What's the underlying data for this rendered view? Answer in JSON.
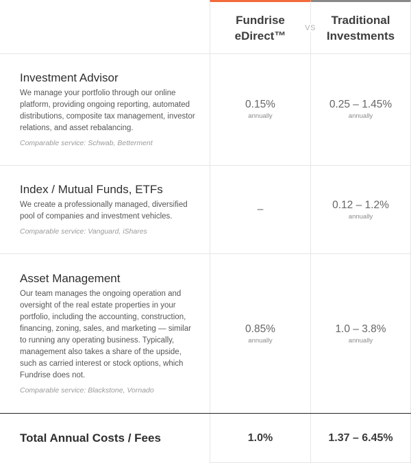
{
  "header": {
    "fundrise_label": "Fundrise\neDirect™",
    "vs_label": "VS",
    "traditional_label": "Traditional\nInvestments"
  },
  "rows": [
    {
      "title": "Investment Advisor",
      "description": "We manage your portfolio through our online platform, providing ongoing reporting, automated distributions, composite tax management, investor relations, and asset rebalancing.",
      "comparable": "Comparable service: Schwab, Betterment",
      "fundrise_value": "0.15%",
      "fundrise_sub": "annually",
      "traditional_value": "0.25 – 1.45%",
      "traditional_sub": "annually"
    },
    {
      "title": "Index / Mutual Funds, ETFs",
      "description": "We create a professionally managed, diversified pool of companies and investment vehicles.",
      "comparable": "Comparable service: Vanguard, iShares",
      "fundrise_value": "–",
      "fundrise_sub": "",
      "traditional_value": "0.12 – 1.2%",
      "traditional_sub": "annually"
    },
    {
      "title": "Asset Management",
      "description": "Our team manages the ongoing operation and oversight of the real estate properties in your portfolio, including the accounting, construction, financing, zoning, sales, and marketing — similar to running any operating business. Typically, management also takes a share of the upside, such as carried interest or stock options, which Fundrise does not.",
      "comparable": "Comparable service: Blackstone, Vornado",
      "fundrise_value": "0.85%",
      "fundrise_sub": "annually",
      "traditional_value": "1.0 – 3.8%",
      "traditional_sub": "annually"
    }
  ],
  "total": {
    "label": "Total Annual Costs / Fees",
    "fundrise_value": "1.0%",
    "traditional_value": "1.37 – 6.45%"
  },
  "colors": {
    "fundrise_accent": "#f26b3a",
    "traditional_accent": "#888888"
  }
}
